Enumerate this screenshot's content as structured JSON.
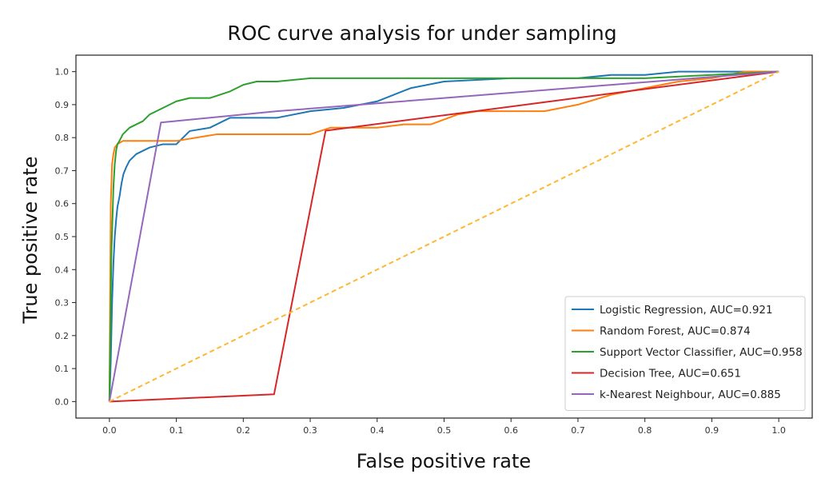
{
  "chart_data": {
    "type": "line",
    "title": "ROC curve analysis for under sampling",
    "xlabel": "False positive rate",
    "ylabel": "True positive rate",
    "xlim": [
      -0.05,
      1.05
    ],
    "ylim": [
      -0.05,
      1.05
    ],
    "xticks": [
      "0.0",
      "0.1",
      "0.2",
      "0.3",
      "0.4",
      "0.5",
      "0.6",
      "0.7",
      "0.8",
      "0.9",
      "1.0"
    ],
    "yticks": [
      "0.0",
      "0.1",
      "0.2",
      "0.3",
      "0.4",
      "0.5",
      "0.6",
      "0.7",
      "0.8",
      "0.9",
      "1.0"
    ],
    "grid": false,
    "legend_position": "bottom-right",
    "series": [
      {
        "name": "Logistic Regression, AUC=0.921",
        "color": "#1f77b4",
        "dash": "",
        "x": [
          0,
          0.002,
          0.004,
          0.006,
          0.008,
          0.01,
          0.012,
          0.015,
          0.018,
          0.021,
          0.025,
          0.03,
          0.035,
          0.04,
          0.05,
          0.06,
          0.08,
          0.1,
          0.12,
          0.15,
          0.18,
          0.25,
          0.3,
          0.35,
          0.4,
          0.45,
          0.5,
          0.6,
          0.7,
          0.75,
          0.8,
          0.85,
          0.9,
          0.95,
          1.0
        ],
        "y": [
          0,
          0.12,
          0.3,
          0.42,
          0.5,
          0.55,
          0.59,
          0.62,
          0.66,
          0.69,
          0.71,
          0.73,
          0.74,
          0.75,
          0.76,
          0.77,
          0.78,
          0.78,
          0.82,
          0.83,
          0.86,
          0.86,
          0.88,
          0.89,
          0.91,
          0.95,
          0.97,
          0.98,
          0.98,
          0.99,
          0.99,
          1.0,
          1.0,
          1.0,
          1.0
        ]
      },
      {
        "name": "Random Forest, AUC=0.874",
        "color": "#ff7f0e",
        "dash": "",
        "x": [
          0,
          0.001,
          0.002,
          0.004,
          0.006,
          0.008,
          0.012,
          0.02,
          0.05,
          0.1,
          0.16,
          0.2,
          0.3,
          0.33,
          0.4,
          0.44,
          0.48,
          0.52,
          0.55,
          0.58,
          0.65,
          0.7,
          0.75,
          0.8,
          0.85,
          0.9,
          0.95,
          1.0
        ],
        "y": [
          0,
          0.3,
          0.6,
          0.72,
          0.75,
          0.77,
          0.78,
          0.79,
          0.79,
          0.79,
          0.81,
          0.81,
          0.81,
          0.83,
          0.83,
          0.84,
          0.84,
          0.87,
          0.88,
          0.88,
          0.88,
          0.9,
          0.93,
          0.95,
          0.97,
          0.98,
          1.0,
          1.0
        ]
      },
      {
        "name": "Support Vector Classifier, AUC=0.958",
        "color": "#2ca02c",
        "dash": "",
        "x": [
          0,
          0.003,
          0.006,
          0.008,
          0.01,
          0.012,
          0.015,
          0.02,
          0.03,
          0.04,
          0.05,
          0.06,
          0.07,
          0.08,
          0.1,
          0.12,
          0.15,
          0.18,
          0.2,
          0.22,
          0.25,
          0.3,
          0.35,
          0.4,
          0.5,
          0.6,
          0.7,
          0.8,
          0.9,
          1.0
        ],
        "y": [
          0,
          0.45,
          0.65,
          0.72,
          0.76,
          0.78,
          0.79,
          0.81,
          0.83,
          0.84,
          0.85,
          0.87,
          0.88,
          0.89,
          0.91,
          0.92,
          0.92,
          0.94,
          0.96,
          0.97,
          0.97,
          0.98,
          0.98,
          0.98,
          0.98,
          0.98,
          0.98,
          0.98,
          0.99,
          1.0
        ]
      },
      {
        "name": "Decision Tree, AUC=0.651",
        "color": "#d62728",
        "dash": "",
        "x": [
          0,
          0.246,
          0.323,
          1.0
        ],
        "y": [
          0,
          0.022,
          0.821,
          1.0
        ]
      },
      {
        "name": "k-Nearest Neighbour, AUC=0.885",
        "color": "#9467bd",
        "dash": "",
        "x": [
          0,
          0.077,
          0.25,
          0.5,
          0.75,
          1.0
        ],
        "y": [
          0,
          0.846,
          0.88,
          0.92,
          0.96,
          1.0
        ]
      },
      {
        "color": "#ffb733",
        "dash": "6 4",
        "x": [
          0,
          1.0
        ],
        "y": [
          0,
          1.0
        ]
      }
    ]
  }
}
